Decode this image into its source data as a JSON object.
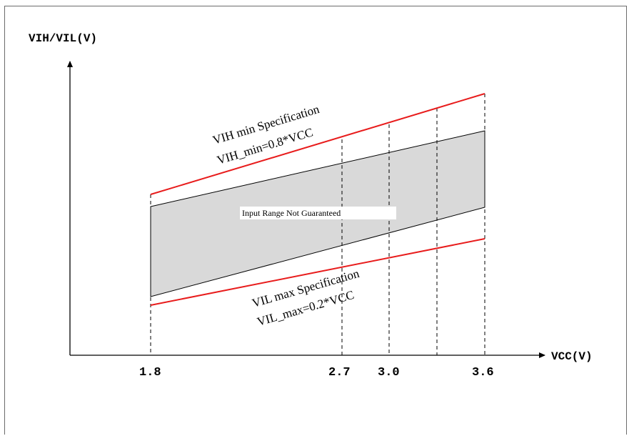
{
  "y_axis_label": "VIH/VIL(V)",
  "x_axis_label": "VCC(V)",
  "ticks": [
    "1.8",
    "2.7",
    "3.0",
    "3.6"
  ],
  "vih_spec": {
    "title": "VIH min Specification",
    "formula": "VIH_min=0.8*VCC"
  },
  "vil_spec": {
    "title": "VIL max Specification",
    "formula": "VIL_max=0.2*VCC"
  },
  "region_label": "Input Range Not Guaranteed",
  "colors": {
    "spec_line": "#e81c1c",
    "region_fill": "#d9d9d9",
    "axis": "#000000"
  }
}
